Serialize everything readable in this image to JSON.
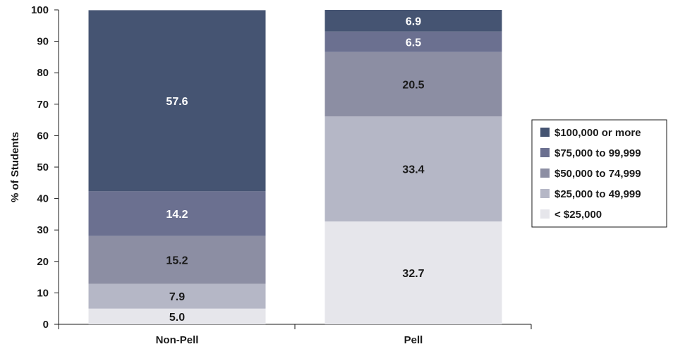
{
  "chart_data": {
    "type": "bar",
    "stacked": true,
    "title": "",
    "xlabel": "",
    "ylabel": "% of Students",
    "ylim": [
      0,
      100
    ],
    "yticks": [
      0,
      10,
      20,
      30,
      40,
      50,
      60,
      70,
      80,
      90,
      100
    ],
    "categories": [
      "Non-Pell",
      "Pell"
    ],
    "grid": false,
    "legend_position": "right",
    "series": [
      {
        "name": "< $25,000",
        "values": [
          5.0,
          32.7
        ],
        "color": "#e6e6eb",
        "label_color": "#1a1a1a"
      },
      {
        "name": "$25,000 to 49,999",
        "values": [
          7.9,
          33.4
        ],
        "color": "#b5b7c6",
        "label_color": "#1a1a1a"
      },
      {
        "name": "$50,000 to 74,999",
        "values": [
          15.2,
          20.5
        ],
        "color": "#8c8ea3",
        "label_color": "#1a1a1a"
      },
      {
        "name": "$75,000 to 99,999",
        "values": [
          14.2,
          6.5
        ],
        "color": "#6b7090",
        "label_color": "#ffffff"
      },
      {
        "name": "$100,000 or more",
        "values": [
          57.6,
          6.9
        ],
        "color": "#455472",
        "label_color": "#ffffff"
      }
    ]
  }
}
